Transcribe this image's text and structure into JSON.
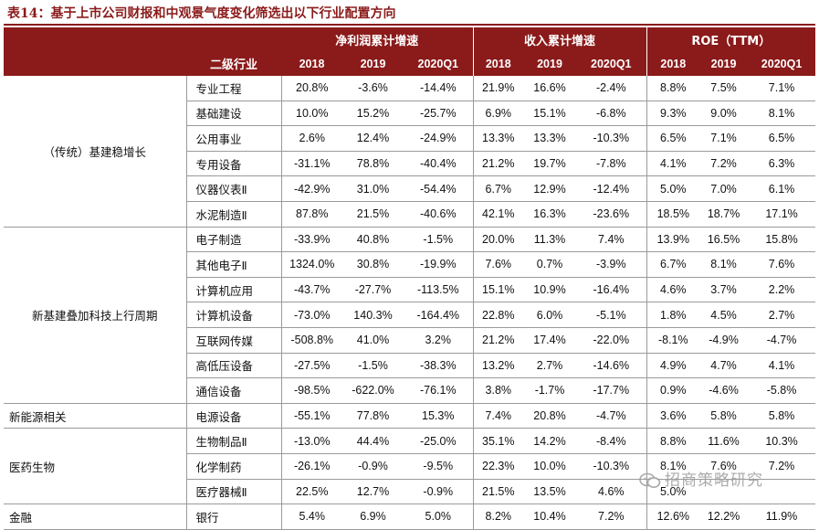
{
  "caption": "表14：基于上市公司财报和中观景气度变化筛选出以下行业配置方向",
  "header": {
    "groups": [
      "净利润累计增速",
      "收入累计增速",
      "ROE（TTM）"
    ],
    "industry_col": "二级行业",
    "periods": [
      "2018",
      "2019",
      "2020Q1",
      "2018",
      "2019",
      "2020Q1",
      "2018",
      "2019",
      "2020Q1"
    ]
  },
  "categories": [
    {
      "name": "（传统）基建稳增长",
      "rows": [
        {
          "industry": "专业工程",
          "values": [
            "20.8%",
            "-3.6%",
            "-14.4%",
            "21.9%",
            "16.6%",
            "-2.4%",
            "8.8%",
            "7.5%",
            "7.1%"
          ]
        },
        {
          "industry": "基础建设",
          "values": [
            "10.0%",
            "15.2%",
            "-25.7%",
            "6.9%",
            "15.1%",
            "-6.8%",
            "9.3%",
            "9.0%",
            "8.1%"
          ]
        },
        {
          "industry": "公用事业",
          "values": [
            "2.6%",
            "12.4%",
            "-24.9%",
            "13.3%",
            "13.3%",
            "-10.3%",
            "6.5%",
            "7.1%",
            "6.5%"
          ]
        },
        {
          "industry": "专用设备",
          "values": [
            "-31.1%",
            "78.8%",
            "-40.4%",
            "21.2%",
            "19.7%",
            "-7.8%",
            "4.1%",
            "7.2%",
            "6.3%"
          ]
        },
        {
          "industry": "仪器仪表Ⅱ",
          "values": [
            "-42.9%",
            "31.0%",
            "-54.4%",
            "6.7%",
            "12.9%",
            "-12.4%",
            "5.0%",
            "7.0%",
            "6.1%"
          ]
        },
        {
          "industry": "水泥制造Ⅱ",
          "values": [
            "87.8%",
            "21.5%",
            "-40.6%",
            "42.1%",
            "16.3%",
            "-23.6%",
            "18.5%",
            "18.7%",
            "17.1%"
          ]
        }
      ]
    },
    {
      "name": "新基建叠加科技上行周期",
      "rows": [
        {
          "industry": "电子制造",
          "values": [
            "-33.9%",
            "40.8%",
            "-1.5%",
            "20.0%",
            "11.3%",
            "7.4%",
            "13.9%",
            "16.5%",
            "15.8%"
          ]
        },
        {
          "industry": "其他电子Ⅱ",
          "values": [
            "1324.0%",
            "30.8%",
            "-19.9%",
            "7.6%",
            "0.7%",
            "-3.9%",
            "6.7%",
            "8.1%",
            "7.6%"
          ]
        },
        {
          "industry": "计算机应用",
          "values": [
            "-43.7%",
            "-27.7%",
            "-113.5%",
            "15.1%",
            "10.9%",
            "-16.4%",
            "4.6%",
            "3.7%",
            "2.2%"
          ]
        },
        {
          "industry": "计算机设备",
          "values": [
            "-73.0%",
            "140.3%",
            "-164.4%",
            "22.8%",
            "6.0%",
            "-5.1%",
            "1.8%",
            "4.5%",
            "2.7%"
          ]
        },
        {
          "industry": "互联网传媒",
          "values": [
            "-508.8%",
            "41.0%",
            "3.2%",
            "21.2%",
            "17.4%",
            "-22.0%",
            "-8.1%",
            "-4.9%",
            "-4.7%"
          ]
        },
        {
          "industry": "高低压设备",
          "values": [
            "-27.5%",
            "-1.5%",
            "-38.3%",
            "13.2%",
            "2.7%",
            "-14.6%",
            "4.9%",
            "4.7%",
            "4.1%"
          ]
        },
        {
          "industry": "通信设备",
          "values": [
            "-98.5%",
            "-622.0%",
            "-76.1%",
            "3.8%",
            "-1.7%",
            "-17.7%",
            "0.9%",
            "-4.6%",
            "-5.8%"
          ]
        }
      ]
    },
    {
      "name": "新能源相关",
      "rows": [
        {
          "industry": "电源设备",
          "values": [
            "-55.1%",
            "77.8%",
            "15.3%",
            "7.4%",
            "20.8%",
            "-4.7%",
            "3.6%",
            "5.8%",
            "5.8%"
          ]
        }
      ]
    },
    {
      "name": "医药生物",
      "rows": [
        {
          "industry": "生物制品Ⅱ",
          "values": [
            "-13.0%",
            "44.4%",
            "-25.0%",
            "35.1%",
            "14.2%",
            "-8.4%",
            "8.8%",
            "11.6%",
            "10.3%"
          ]
        },
        {
          "industry": "化学制药",
          "values": [
            "-26.1%",
            "-0.9%",
            "-9.5%",
            "22.3%",
            "10.0%",
            "-10.3%",
            "8.1%",
            "7.6%",
            "7.2%"
          ]
        },
        {
          "industry": "医疗器械Ⅱ",
          "values": [
            "22.5%",
            "12.7%",
            "-0.9%",
            "21.5%",
            "13.5%",
            "4.6%",
            "5.0%",
            "",
            ""
          ]
        }
      ]
    },
    {
      "name": "金融",
      "rows": [
        {
          "industry": "银行",
          "values": [
            "5.4%",
            "6.9%",
            "5.0%",
            "8.2%",
            "10.4%",
            "7.2%",
            "12.6%",
            "12.2%",
            "11.9%"
          ]
        }
      ]
    }
  ],
  "watermark": "招商策略研究",
  "watermark_icon": "wechat-icon",
  "colors": {
    "header_bg": "#8b1a1a",
    "header_text": "#ffffff",
    "caption": "#8b1a1a",
    "grid": "#9a9a9a"
  }
}
